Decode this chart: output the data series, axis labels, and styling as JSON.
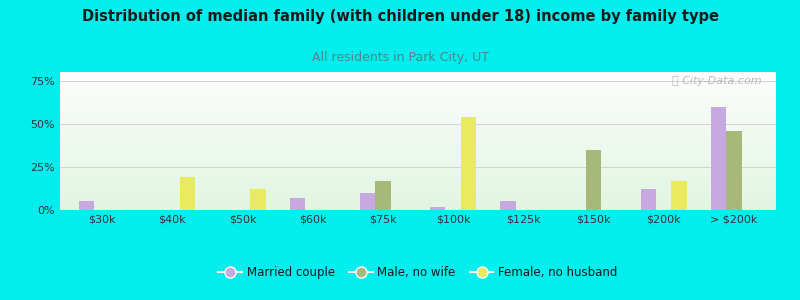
{
  "categories": [
    "$30k",
    "$40k",
    "$50k",
    "$60k",
    "$75k",
    "$100k",
    "$125k",
    "$150k",
    "$200k",
    "> $200k"
  ],
  "married_couple": [
    5,
    0,
    0,
    7,
    10,
    2,
    5,
    0,
    12,
    60
  ],
  "male_no_wife": [
    0,
    0,
    0,
    0,
    17,
    0,
    0,
    35,
    0,
    46
  ],
  "female_no_husband": [
    0,
    19,
    12,
    0,
    0,
    54,
    0,
    0,
    17,
    0
  ],
  "series_labels": [
    "Married couple",
    "Male, no wife",
    "Female, no husband"
  ],
  "colors": [
    "#c8a8e0",
    "#a8b878",
    "#eaea60"
  ],
  "title": "Distribution of median family (with children under 18) income by family type",
  "subtitle": "All residents in Park City, UT",
  "title_color": "#1a1a1a",
  "subtitle_color": "#4a8a8a",
  "bg_color": "#00eeee",
  "yticks": [
    0,
    25,
    50,
    75
  ],
  "ylim": [
    0,
    80
  ],
  "bar_width": 0.22,
  "watermark": "ⓘ City-Data.com"
}
